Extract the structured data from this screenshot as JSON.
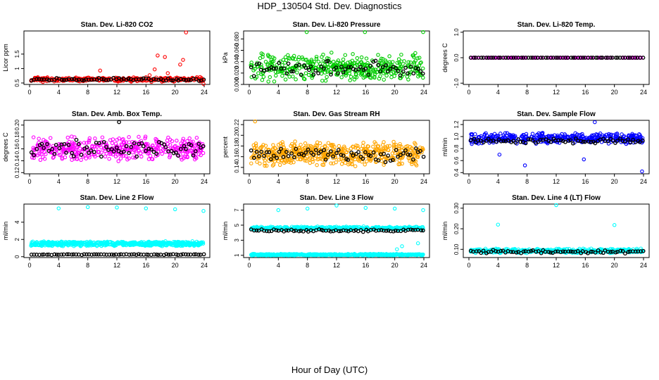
{
  "page": {
    "title": "HDP_130504  Std. Dev. Diagnostics",
    "xlabel": "Hour of Day (UTC)"
  },
  "chart_data": [
    {
      "type": "scatter",
      "title": "Stan. Dev. Li-820 CO2",
      "ylabel": "Licor ppm",
      "xlim": [
        0,
        24
      ],
      "ylim": [
        0.45,
        2.3
      ],
      "xticks": [
        "0",
        "4",
        "8",
        "12",
        "16",
        "20",
        "24"
      ],
      "yticks": [
        {
          "v": 0.5,
          "label": "0.5"
        },
        {
          "v": 1.0,
          "label": "1"
        },
        {
          "v": 1.5,
          "label": "1.5"
        }
      ],
      "series": [
        {
          "color": "#ff0000",
          "base": 0.62,
          "spread": 0.09,
          "n": 300,
          "seed": 11,
          "outliers": [
            [
              9.7,
              0.93
            ],
            [
              16.5,
              0.77
            ],
            [
              17.2,
              0.97
            ],
            [
              17.6,
              1.45
            ],
            [
              18.6,
              1.4
            ],
            [
              19.0,
              0.84
            ],
            [
              20.7,
              1.14
            ],
            [
              21.1,
              1.3
            ],
            [
              21.5,
              2.25
            ],
            [
              23.0,
              0.7
            ],
            [
              23.9,
              0.47
            ]
          ]
        },
        {
          "color": "#000000",
          "base": 0.62,
          "spread": 0.06,
          "n": 70,
          "seed": 12,
          "outliers": []
        }
      ]
    },
    {
      "type": "scatter",
      "title": "Stan. Dev. Li-820 Pressure",
      "ylabel": "kPa",
      "xlim": [
        0,
        24
      ],
      "ylim": [
        0.0,
        0.094
      ],
      "xticks": [
        "0",
        "4",
        "8",
        "12",
        "16",
        "20",
        "24"
      ],
      "yticks": [
        {
          "v": 0.0,
          "label": "0.000"
        },
        {
          "v": 0.02,
          "label": "0.020"
        },
        {
          "v": 0.04,
          "label": "0.040"
        },
        {
          "v": 0.06,
          "label": "0.060"
        },
        {
          "v": 0.08,
          "label": "0.080"
        }
      ],
      "series": [
        {
          "color": "#00cc00",
          "base": 0.03,
          "spread": 0.026,
          "n": 420,
          "seed": 21,
          "outliers": [
            [
              7.9,
              0.092
            ],
            [
              15.9,
              0.092
            ],
            [
              23.9,
              0.092
            ]
          ]
        },
        {
          "color": "#000000",
          "base": 0.028,
          "spread": 0.015,
          "n": 70,
          "seed": 22,
          "outliers": []
        }
      ]
    },
    {
      "type": "scatter",
      "title": "Stan. Dev. Li-820 Temp.",
      "ylabel": "degrees C",
      "xlim": [
        0,
        24
      ],
      "ylim": [
        -1.05,
        1.05
      ],
      "xticks": [
        "0",
        "4",
        "8",
        "12",
        "16",
        "20",
        "24"
      ],
      "yticks": [
        {
          "v": -1.0,
          "label": "-1.0"
        },
        {
          "v": 0.0,
          "label": "0.0"
        },
        {
          "v": 1.0,
          "label": "1.0"
        }
      ],
      "series": [
        {
          "color": "#ff00ff",
          "base": 0.0,
          "spread": 0.0,
          "n": 120,
          "seed": 31,
          "outliers": []
        },
        {
          "color": "#000000",
          "base": 0.0,
          "spread": 0.0,
          "n": 70,
          "seed": 32,
          "outliers": []
        }
      ]
    },
    {
      "type": "scatter",
      "title": "Stan. Dev. Amb. Box Temp.",
      "ylabel": "degrees C",
      "xlim": [
        0,
        24
      ],
      "ylim": [
        0.118,
        0.208
      ],
      "xticks": [
        "0",
        "4",
        "8",
        "12",
        "16",
        "20",
        "24"
      ],
      "yticks": [
        {
          "v": 0.12,
          "label": "0.12"
        },
        {
          "v": 0.14,
          "label": "0.14"
        },
        {
          "v": 0.16,
          "label": "0.16"
        },
        {
          "v": 0.18,
          "label": "0.18"
        },
        {
          "v": 0.2,
          "label": "0.20"
        }
      ],
      "series": [
        {
          "color": "#ff00ff",
          "base": 0.16,
          "spread": 0.022,
          "n": 420,
          "seed": 41,
          "outliers": []
        },
        {
          "color": "#000000",
          "base": 0.16,
          "spread": 0.018,
          "n": 70,
          "seed": 42,
          "outliers": [
            [
              12.3,
              0.205
            ]
          ]
        }
      ]
    },
    {
      "type": "scatter",
      "title": "Stan. Dev. Gas Stream RH",
      "ylabel": "percent",
      "xlim": [
        0,
        24
      ],
      "ylim": [
        0.128,
        0.228
      ],
      "xticks": [
        "0",
        "4",
        "8",
        "12",
        "16",
        "20",
        "24"
      ],
      "yticks": [
        {
          "v": 0.14,
          "label": "0.14"
        },
        {
          "v": 0.16,
          "label": "0.16"
        },
        {
          "v": 0.18,
          "label": "0.18"
        },
        {
          "v": 0.2,
          "label": "0.20"
        },
        {
          "v": 0.22,
          "label": "0.22"
        }
      ],
      "series": [
        {
          "color": "#ffa500",
          "base": 0.165,
          "spread": 0.025,
          "n": 520,
          "seed": 51,
          "outliers": [
            [
              0.8,
              0.226
            ]
          ]
        },
        {
          "color": "#000000",
          "base": 0.165,
          "spread": 0.016,
          "n": 70,
          "seed": 52,
          "outliers": []
        }
      ]
    },
    {
      "type": "scatter",
      "title": "Stan. Dev. Sample Flow",
      "ylabel": "ml/min",
      "xlim": [
        0,
        24
      ],
      "ylim": [
        0.38,
        1.27
      ],
      "xticks": [
        "0",
        "4",
        "8",
        "12",
        "16",
        "20",
        "24"
      ],
      "yticks": [
        {
          "v": 0.4,
          "label": "0.4"
        },
        {
          "v": 0.6,
          "label": "0.6"
        },
        {
          "v": 0.8,
          "label": "0.8"
        },
        {
          "v": 1.0,
          "label": "1.0"
        },
        {
          "v": 1.2,
          "label": "1.2"
        }
      ],
      "series": [
        {
          "color": "#0000ff",
          "base": 0.97,
          "spread": 0.1,
          "n": 420,
          "seed": 61,
          "outliers": [
            [
              7.7,
              0.52
            ],
            [
              15.8,
              0.62
            ],
            [
              17.3,
              1.24
            ],
            [
              23.8,
              0.42
            ],
            [
              4.2,
              0.7
            ]
          ]
        },
        {
          "color": "#000000",
          "base": 0.93,
          "spread": 0.05,
          "n": 70,
          "seed": 62,
          "outliers": []
        }
      ]
    },
    {
      "type": "scatter",
      "title": "Stan. Dev. Line 2 Flow",
      "ylabel": "ml/min",
      "xlim": [
        0,
        24
      ],
      "ylim": [
        -0.1,
        6.1
      ],
      "xticks": [
        "0",
        "4",
        "8",
        "12",
        "16",
        "20",
        "24"
      ],
      "yticks": [
        {
          "v": 0,
          "label": "0"
        },
        {
          "v": 2,
          "label": "2"
        },
        {
          "v": 4,
          "label": "4"
        }
      ],
      "series": [
        {
          "color": "#00ffff",
          "base": 1.5,
          "spread": 0.3,
          "n": 560,
          "seed": 71,
          "outliers": [
            [
              4.0,
              5.6
            ],
            [
              8.0,
              5.75
            ],
            [
              12.0,
              5.7
            ],
            [
              16.0,
              5.6
            ],
            [
              20.0,
              5.5
            ],
            [
              23.9,
              5.3
            ]
          ]
        },
        {
          "color": "#000000",
          "base": 0.25,
          "spread": 0.06,
          "n": 70,
          "seed": 72,
          "outliers": []
        }
      ]
    },
    {
      "type": "scatter",
      "title": "Stan. Dev. Line 3 Flow",
      "ylabel": "ml/min",
      "xlim": [
        0,
        24
      ],
      "ylim": [
        0.7,
        7.8
      ],
      "xticks": [
        "0",
        "4",
        "8",
        "12",
        "16",
        "20",
        "24"
      ],
      "yticks": [
        {
          "v": 1,
          "label": "1"
        },
        {
          "v": 3,
          "label": "3"
        },
        {
          "v": 5,
          "label": "5"
        },
        {
          "v": 7,
          "label": "7"
        }
      ],
      "series": [
        {
          "color": "#00ffff",
          "base": 4.6,
          "spread": 0.25,
          "n": 420,
          "seed": 81,
          "outliers": [
            [
              4.0,
              7.0
            ],
            [
              8.0,
              7.2
            ],
            [
              12.0,
              7.6
            ],
            [
              16.0,
              7.3
            ],
            [
              20.0,
              7.2
            ],
            [
              23.9,
              7.0
            ],
            [
              20.3,
              1.8
            ],
            [
              21.0,
              2.2
            ],
            [
              23.2,
              2.6
            ]
          ]
        },
        {
          "color": "#00ffff",
          "base": 1.08,
          "spread": 0.12,
          "n": 520,
          "seed": 83,
          "outliers": []
        },
        {
          "color": "#000000",
          "base": 4.3,
          "spread": 0.2,
          "n": 70,
          "seed": 82,
          "outliers": []
        }
      ]
    },
    {
      "type": "scatter",
      "title": "Stan. Dev. Line 4 (LT) Flow",
      "ylabel": "ml/min",
      "xlim": [
        0,
        24
      ],
      "ylim": [
        0.06,
        0.32
      ],
      "xticks": [
        "0",
        "4",
        "8",
        "12",
        "16",
        "20",
        "24"
      ],
      "yticks": [
        {
          "v": 0.1,
          "label": "0.10"
        },
        {
          "v": 0.2,
          "label": "0.20"
        },
        {
          "v": 0.3,
          "label": "0.30"
        }
      ],
      "series": [
        {
          "color": "#00ffff",
          "base": 0.093,
          "spread": 0.012,
          "n": 420,
          "seed": 91,
          "outliers": [
            [
              4.0,
              0.22
            ],
            [
              12.0,
              0.315
            ],
            [
              20.0,
              0.218
            ]
          ]
        },
        {
          "color": "#000000",
          "base": 0.088,
          "spread": 0.01,
          "n": 70,
          "seed": 92,
          "outliers": []
        }
      ]
    }
  ]
}
